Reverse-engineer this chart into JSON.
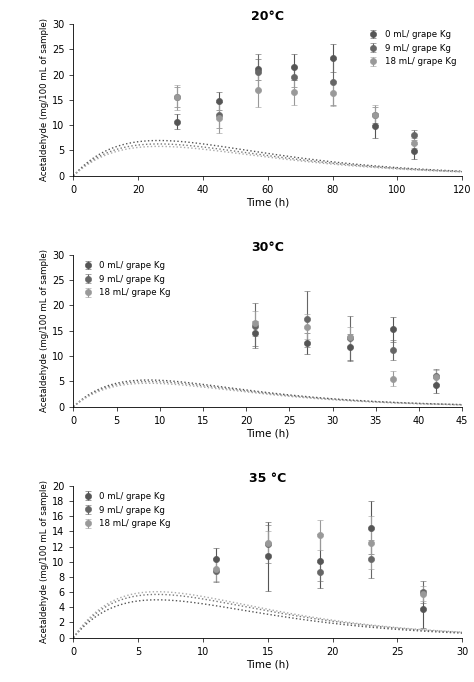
{
  "panel1": {
    "title": "20°C",
    "xlim": [
      0,
      120
    ],
    "ylim": [
      0,
      30
    ],
    "xticks": [
      0,
      20,
      40,
      60,
      80,
      100,
      120
    ],
    "yticks": [
      0,
      5,
      10,
      15,
      20,
      25,
      30
    ],
    "series": [
      {
        "label": "0 mL/ grape Kg",
        "color": "#555555",
        "x": [
          32,
          45,
          57,
          68,
          80,
          93,
          105
        ],
        "y": [
          10.7,
          14.7,
          21.0,
          21.5,
          23.2,
          9.9,
          4.8
        ],
        "yerr": [
          1.5,
          1.8,
          2.0,
          2.5,
          2.8,
          2.5,
          1.5
        ]
      },
      {
        "label": "9 mL/ grape Kg",
        "color": "#666666",
        "x": [
          32,
          45,
          57,
          68,
          80,
          93,
          105
        ],
        "y": [
          15.5,
          12.0,
          20.5,
          19.5,
          18.5,
          12.0,
          8.0
        ],
        "yerr": [
          2.0,
          2.5,
          3.5,
          2.0,
          4.5,
          1.5,
          1.0
        ]
      },
      {
        "label": "18 mL/ grape Kg",
        "color": "#999999",
        "x": [
          32,
          45,
          57,
          68,
          80,
          93,
          105
        ],
        "y": [
          15.5,
          11.5,
          17.0,
          16.5,
          16.3,
          12.0,
          6.5
        ],
        "yerr": [
          2.5,
          3.0,
          3.5,
          2.5,
          2.5,
          2.0,
          1.0
        ]
      }
    ],
    "curves": [
      {
        "a": 0.72,
        "b": 0.038
      },
      {
        "a": 0.65,
        "b": 0.038
      },
      {
        "a": 0.6,
        "b": 0.038
      }
    ],
    "legend_loc": "upper right"
  },
  "panel2": {
    "title": "30°C",
    "xlim": [
      0,
      45
    ],
    "ylim": [
      0,
      30
    ],
    "xticks": [
      0,
      5,
      10,
      15,
      20,
      25,
      30,
      35,
      40,
      45
    ],
    "yticks": [
      0,
      5,
      10,
      15,
      20,
      25,
      30
    ],
    "series": [
      {
        "label": "0 mL/ grape Kg",
        "color": "#555555",
        "x": [
          21,
          27,
          32,
          37,
          42
        ],
        "y": [
          14.5,
          12.5,
          11.8,
          15.3,
          4.2
        ],
        "yerr": [
          2.5,
          2.0,
          2.5,
          2.5,
          1.5
        ]
      },
      {
        "label": "9 mL/ grape Kg",
        "color": "#666666",
        "x": [
          21,
          27,
          32,
          37,
          42
        ],
        "y": [
          16.0,
          17.3,
          13.5,
          11.2,
          6.0
        ],
        "yerr": [
          4.5,
          5.5,
          4.5,
          2.0,
          1.5
        ]
      },
      {
        "label": "18 mL/ grape Kg",
        "color": "#999999",
        "x": [
          21,
          27,
          32,
          37,
          42
        ],
        "y": [
          16.5,
          15.8,
          13.8,
          5.5,
          5.8
        ],
        "yerr": [
          2.5,
          2.5,
          2.0,
          1.5,
          1.5
        ]
      }
    ],
    "curves": [
      {
        "a": 1.65,
        "b": 0.115
      },
      {
        "a": 1.55,
        "b": 0.115
      },
      {
        "a": 1.45,
        "b": 0.115
      }
    ],
    "legend_loc": "upper left"
  },
  "panel3": {
    "title": "35 °C",
    "xlim": [
      0,
      30
    ],
    "ylim": [
      0,
      20
    ],
    "xticks": [
      0,
      5,
      10,
      15,
      20,
      25,
      30
    ],
    "yticks": [
      0,
      2,
      4,
      6,
      8,
      10,
      12,
      14,
      16,
      18,
      20
    ],
    "series": [
      {
        "label": "0 mL/ grape Kg",
        "color": "#555555",
        "x": [
          11,
          15,
          19,
          23,
          27
        ],
        "y": [
          10.3,
          10.7,
          10.1,
          14.5,
          3.8
        ],
        "yerr": [
          1.5,
          4.5,
          3.5,
          3.5,
          2.5
        ]
      },
      {
        "label": "9 mL/ grape Kg",
        "color": "#666666",
        "x": [
          11,
          15,
          19,
          23,
          27
        ],
        "y": [
          8.8,
          12.3,
          8.7,
          10.3,
          6.0
        ],
        "yerr": [
          1.5,
          2.5,
          1.2,
          2.5,
          1.5
        ]
      },
      {
        "label": "18 mL/ grape Kg",
        "color": "#999999",
        "x": [
          11,
          15,
          19,
          23,
          27
        ],
        "y": [
          9.0,
          12.5,
          13.5,
          12.5,
          5.8
        ],
        "yerr": [
          1.5,
          1.5,
          2.0,
          3.5,
          1.0
        ]
      }
    ],
    "curves": [
      {
        "a": 2.1,
        "b": 0.155
      },
      {
        "a": 2.4,
        "b": 0.155
      },
      {
        "a": 2.55,
        "b": 0.155
      }
    ],
    "legend_loc": "upper left"
  },
  "ylabel": "Acetaldehyde (mg/100 mL of sample)",
  "xlabel": "Time (h)",
  "marker": "o",
  "markersize": 4.5,
  "capsize": 2.5,
  "elinewidth": 0.8,
  "curve_colors": [
    "#555555",
    "#777777",
    "#aaaaaa"
  ],
  "bg_color": "#ffffff"
}
